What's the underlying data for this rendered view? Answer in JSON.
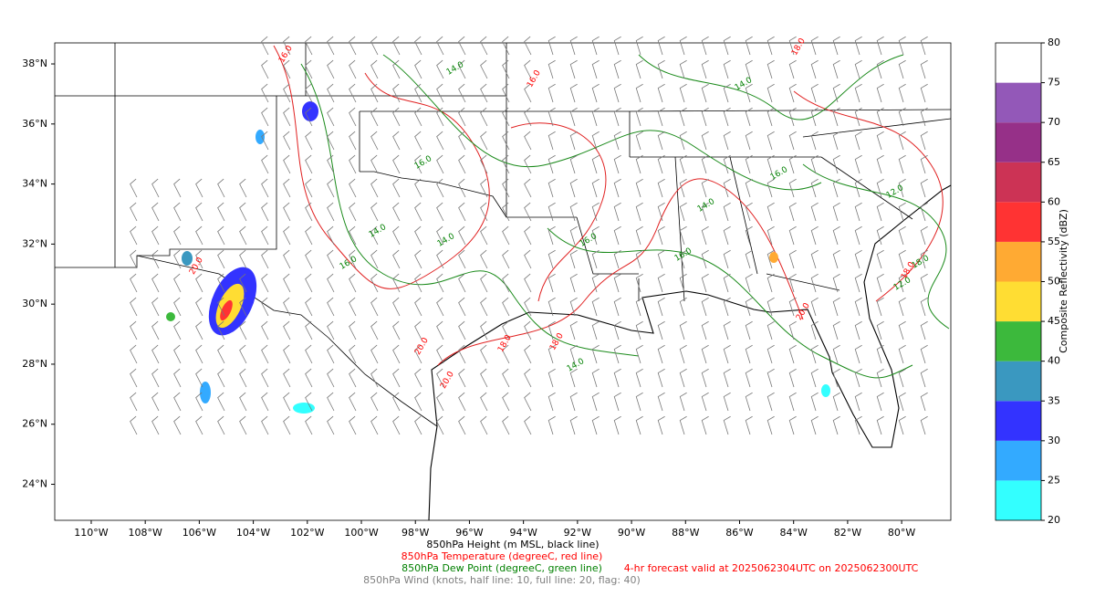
{
  "map": {
    "lon_range": [
      -111.35,
      -78.18
    ],
    "lat_range": [
      22.8,
      38.7
    ],
    "lon_ticks": [
      {
        "value": -110,
        "label": "110°W"
      },
      {
        "value": -108,
        "label": "108°W"
      },
      {
        "value": -106,
        "label": "106°W"
      },
      {
        "value": -104,
        "label": "104°W"
      },
      {
        "value": -102,
        "label": "102°W"
      },
      {
        "value": -100,
        "label": "100°W"
      },
      {
        "value": -98,
        "label": "98°W"
      },
      {
        "value": -96,
        "label": "96°W"
      },
      {
        "value": -94,
        "label": "94°W"
      },
      {
        "value": -92,
        "label": "92°W"
      },
      {
        "value": -90,
        "label": "90°W"
      },
      {
        "value": -88,
        "label": "88°W"
      },
      {
        "value": -86,
        "label": "86°W"
      },
      {
        "value": -84,
        "label": "84°W"
      },
      {
        "value": -82,
        "label": "82°W"
      },
      {
        "value": -80,
        "label": "80°W"
      }
    ],
    "lat_ticks": [
      {
        "value": 24,
        "label": "24°N"
      },
      {
        "value": 26,
        "label": "26°N"
      },
      {
        "value": 28,
        "label": "28°N"
      },
      {
        "value": 30,
        "label": "30°N"
      },
      {
        "value": 32,
        "label": "32°N"
      },
      {
        "value": 34,
        "label": "34°N"
      },
      {
        "value": 36,
        "label": "36°N"
      },
      {
        "value": 38,
        "label": "38°N"
      }
    ],
    "temperature_labels": [
      "16.0",
      "18.0",
      "20.0",
      "18.0",
      "20.0",
      "16.0",
      "18.0",
      "20.0",
      "18.0",
      "20.0"
    ],
    "dew_point_labels": [
      "14.0",
      "16.0",
      "14.0",
      "16.0",
      "14.0",
      "16.0",
      "14.0",
      "12.0",
      "16.0",
      "14.0",
      "18.0",
      "12.0",
      "16.0",
      "14.0"
    ]
  },
  "colorbar": {
    "label": "Composite Reflectivity (dBZ)",
    "ticks": [
      20,
      25,
      30,
      35,
      40,
      45,
      50,
      55,
      60,
      65,
      70,
      75,
      80
    ],
    "colors": [
      "#33ffff",
      "#33aaff",
      "#3333ff",
      "#3a98c0",
      "#3cb93c",
      "#ffdd33",
      "#ffaa33",
      "#ff3333",
      "#cc3355",
      "#963088",
      "#9358b8",
      "#ffffff"
    ]
  },
  "captions": [
    {
      "text": "850hPa Height (m MSL, black line)",
      "color": "#000000"
    },
    {
      "text": "850hPa Temperature (degreeC, red line)",
      "color": "#ff0000"
    },
    {
      "text": "850hPa Dew Point (degreeC, green line)",
      "color": "#008000"
    },
    {
      "text": "850hPa Wind (knots, half line: 10, full line: 20, flag: 40)",
      "color": "#808080"
    }
  ],
  "valid_time": {
    "text": "4-hr forecast valid at 2025062304UTC on 2025062300UTC",
    "color": "#ff0000"
  }
}
